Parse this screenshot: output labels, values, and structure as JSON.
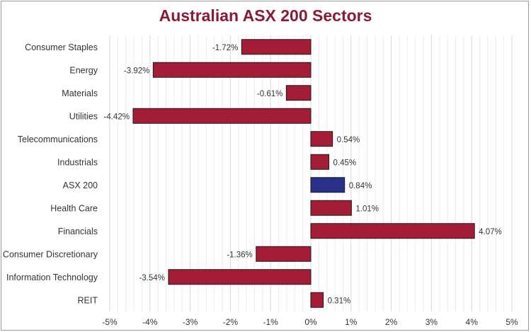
{
  "colors": {
    "bar": "#a51c36",
    "highlight": "#28308c",
    "title": "#8b1a35"
  },
  "chart_data": {
    "type": "bar",
    "orientation": "horizontal",
    "title": "Australian ASX 200 Sectors",
    "categories": [
      "Consumer Staples",
      "Energy",
      "Materials",
      "Utilities",
      "Telecommunications",
      "Industrials",
      "ASX 200",
      "Health Care",
      "Financials",
      "Consumer Discretionary",
      "Information Technology",
      "REIT"
    ],
    "values": [
      -1.72,
      -3.92,
      -0.61,
      -4.42,
      0.54,
      0.45,
      0.84,
      1.01,
      4.07,
      -1.36,
      -3.54,
      0.31
    ],
    "data_labels": [
      "-1.72%",
      "-3.92%",
      "-0.61%",
      "-4.42%",
      "0.54%",
      "0.45%",
      "0.84%",
      "1.01%",
      "4.07%",
      "-1.36%",
      "-3.54%",
      "0.31%"
    ],
    "highlight_category": "ASX 200",
    "xlim": [
      -5,
      5
    ],
    "xticks": [
      -5,
      -4,
      -3,
      -2,
      -1,
      0,
      1,
      2,
      3,
      4,
      5
    ],
    "xtick_labels": [
      "-5%",
      "-4%",
      "-3%",
      "-2%",
      "-1%",
      "0%",
      "1%",
      "2%",
      "3%",
      "4%",
      "5%"
    ],
    "grid": "vertical minor",
    "legend": "none"
  }
}
